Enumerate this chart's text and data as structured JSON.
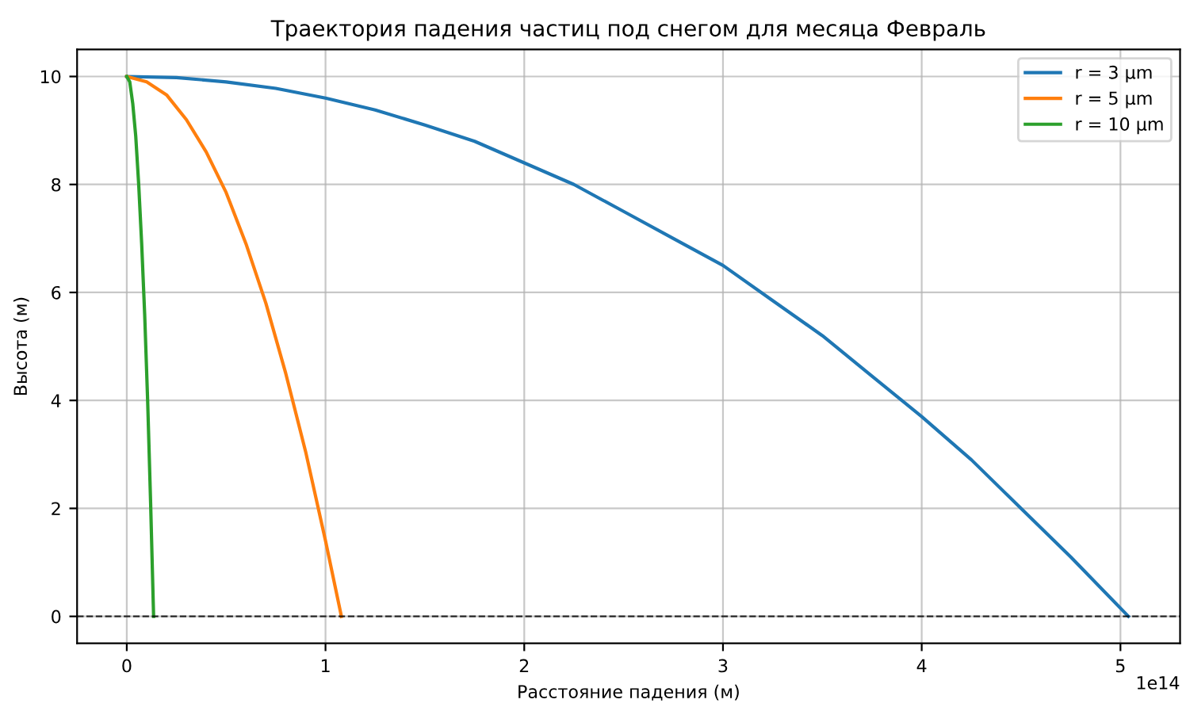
{
  "chart_data": {
    "type": "line",
    "title": "Траектория падения частиц под снегом для месяца Февраль",
    "xlabel": "Расстояние падения (м)",
    "ylabel": "Высота (м)",
    "series": [
      {
        "name": "r = 3 μm",
        "color": "#1f77b4",
        "x": [
          0,
          0.25,
          0.5,
          0.75,
          1.0,
          1.25,
          1.5,
          1.75,
          2.0,
          2.25,
          2.5,
          2.75,
          3.0,
          3.25,
          3.5,
          3.75,
          4.0,
          4.25,
          4.5,
          4.75,
          5.04
        ],
        "values": [
          10,
          9.98,
          9.9,
          9.78,
          9.6,
          9.38,
          9.1,
          8.8,
          8.4,
          8.0,
          7.5,
          7.0,
          6.5,
          5.85,
          5.2,
          4.45,
          3.7,
          2.9,
          2.0,
          1.1,
          0
        ]
      },
      {
        "name": "r = 5 μm",
        "color": "#ff7f0e",
        "x": [
          0,
          0.1,
          0.2,
          0.3,
          0.4,
          0.5,
          0.6,
          0.7,
          0.8,
          0.9,
          1.0,
          1.08
        ],
        "values": [
          10,
          9.9,
          9.66,
          9.2,
          8.6,
          7.85,
          6.9,
          5.8,
          4.5,
          3.05,
          1.4,
          0
        ]
      },
      {
        "name": "r = 10 μm",
        "color": "#2ca02c",
        "x": [
          0,
          0.015,
          0.03,
          0.045,
          0.06,
          0.075,
          0.09,
          0.105,
          0.12,
          0.135
        ],
        "values": [
          10,
          9.9,
          9.5,
          8.9,
          8.0,
          6.9,
          5.6,
          4.0,
          2.1,
          0
        ]
      }
    ],
    "xlim": [
      -0.25,
      5.3
    ],
    "ylim": [
      -0.5,
      10.5
    ],
    "xticks": [
      0,
      1,
      2,
      3,
      4,
      5
    ],
    "yticks": [
      0,
      2,
      4,
      6,
      8,
      10
    ],
    "annotations": [
      "1e14"
    ],
    "ref_lines": [
      {
        "axis": "y",
        "value": 0,
        "label": null,
        "color": "#000000",
        "line_style": "dashed"
      }
    ],
    "grid": true,
    "legend": "top right",
    "marker": "none",
    "line_style": "solid"
  }
}
